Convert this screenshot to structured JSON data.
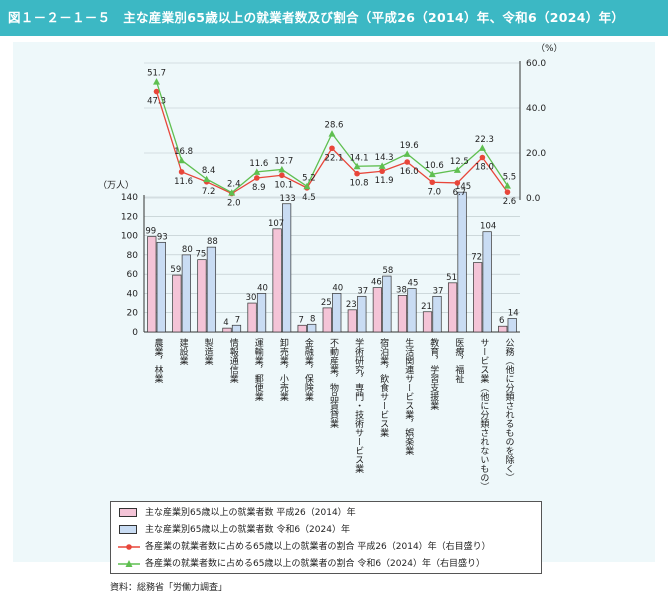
{
  "header": {
    "title": "図１－２－１－５　主な産業別65歳以上の就業者数及び割合（平成26（2014）年、令和6（2024）年）"
  },
  "colors": {
    "header_bg": "#3cb8c4",
    "bar_2014": "#f4c4d7",
    "bar_2024": "#c9dcf3",
    "line_2014": "#e8463a",
    "line_2024": "#5fbf50"
  },
  "chart_data": {
    "type": "bar+line",
    "left_axis": {
      "unit": "（万人）",
      "ticks": [
        "0",
        "20",
        "40",
        "60",
        "80",
        "100",
        "120",
        "140"
      ],
      "ylim": [
        0,
        140
      ]
    },
    "right_axis": {
      "unit": "（%）",
      "ticks": [
        "0.0",
        "20.0",
        "40.0",
        "60.0"
      ],
      "ylim": [
        0,
        60
      ]
    },
    "categories": [
      "農業，林業",
      "建設業",
      "製造業",
      "情報通信業",
      "運輸業，郵便業",
      "卸売業，小売業",
      "金融業，保険業",
      "不動産業，物品賃貸業",
      "学術研究，専門・技術サービス業",
      "宿泊業，飲食サービス業",
      "生活関連サービス業，娯楽業",
      "教育，学習支援業",
      "医療，福祉",
      "サービス業（他に分類されないもの）",
      "公務（他に分類されるものを除く）"
    ],
    "series": [
      {
        "name": "主な産業別65歳以上の就業者数 平成26（2014）年",
        "kind": "bar",
        "values": [
          99,
          59,
          75,
          4,
          30,
          107,
          7,
          25,
          23,
          46,
          38,
          21,
          51,
          72,
          6
        ],
        "labels": [
          "99",
          "59",
          "75",
          "4",
          "30",
          "107",
          "7",
          "25",
          "23",
          "46",
          "38",
          "21",
          "51",
          "72",
          "6"
        ]
      },
      {
        "name": "主な産業別65歳以上の就業者数 令和6（2024）年",
        "kind": "bar",
        "values": [
          93,
          80,
          88,
          7,
          40,
          133,
          8,
          40,
          37,
          58,
          45,
          37,
          145,
          104,
          14
        ],
        "labels": [
          "93",
          "80",
          "88",
          "7",
          "40",
          "133",
          "8",
          "40",
          "37",
          "58",
          "45",
          "37",
          "145",
          "104",
          "14"
        ]
      },
      {
        "name": "各産業の就業者数に占める65歳以上の就業者の割合 平成26（2014）年（右目盛り）",
        "kind": "line",
        "values": [
          47.3,
          11.6,
          7.2,
          2.0,
          8.9,
          10.1,
          4.5,
          22.1,
          10.8,
          11.9,
          16.0,
          7.0,
          6.7,
          18.0,
          2.6
        ],
        "labels": [
          "47.3",
          "11.6",
          "7.2",
          "2.0",
          "8.9",
          "10.1",
          "4.5",
          "22.1",
          "10.8",
          "11.9",
          "16.0",
          "7.0",
          "6.7",
          "18.0",
          "2.6"
        ]
      },
      {
        "name": "各産業の就業者数に占める65歳以上の就業者の割合 令和6（2024）年（右目盛り）",
        "kind": "line",
        "values": [
          51.7,
          16.8,
          8.4,
          2.4,
          11.6,
          12.7,
          5.2,
          28.6,
          14.1,
          14.3,
          19.6,
          10.6,
          12.5,
          22.3,
          5.5
        ],
        "labels": [
          "51.7",
          "16.8",
          "8.4",
          "2.4",
          "11.6",
          "12.7",
          "5.2",
          "28.6",
          "14.1",
          "14.3",
          "19.6",
          "10.6",
          "12.5",
          "22.3",
          "5.5"
        ]
      }
    ],
    "legend_position": "bottom"
  },
  "source": "資料：総務省「労働力調査」"
}
